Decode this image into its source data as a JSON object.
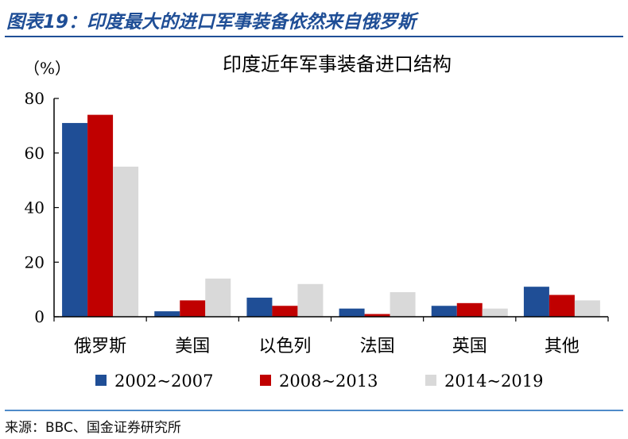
{
  "figure": {
    "title": "图表19：印度最大的进口军事装备依然来自俄罗斯",
    "source": "来源：BBC、国金证券研究所"
  },
  "colors": {
    "title": "#1f4e96",
    "rule_top": "#1f4e96",
    "rule_bottom": "#4f8bc9",
    "series": [
      "#1f4e96",
      "#c00000",
      "#d9d9d9"
    ]
  },
  "chart_data": {
    "type": "bar",
    "title": "印度近年军事装备进口结构",
    "ylabel": "（%）",
    "xlabel": "",
    "categories": [
      "俄罗斯",
      "美国",
      "以色列",
      "法国",
      "英国",
      "其他"
    ],
    "series": [
      {
        "name": "2002~2007",
        "values": [
          71,
          2,
          7,
          3,
          4,
          11
        ]
      },
      {
        "name": "2008~2013",
        "values": [
          74,
          6,
          4,
          1,
          5,
          8
        ]
      },
      {
        "name": "2014~2019",
        "values": [
          55,
          14,
          12,
          9,
          3,
          6
        ]
      }
    ],
    "ylim": [
      0,
      80
    ],
    "yticks": [
      0,
      20,
      40,
      60,
      80
    ],
    "grid": false,
    "legend": "bottom"
  }
}
